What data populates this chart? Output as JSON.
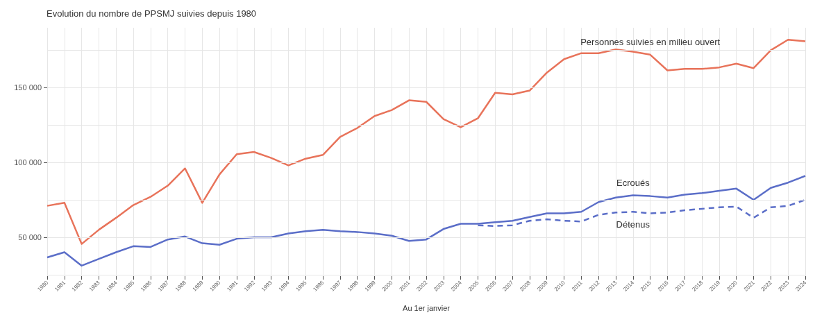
{
  "chart_data": {
    "type": "line",
    "title": "Evolution du nombre de PPSMJ suivies depuis 1980",
    "xlabel": "Au 1er janvier",
    "categories": [
      "1980",
      "1981",
      "1982",
      "1983",
      "1984",
      "1985",
      "1986",
      "1987",
      "1988",
      "1989",
      "1990",
      "1991",
      "1992",
      "1993",
      "1994",
      "1995",
      "1996",
      "1997",
      "1998",
      "1999",
      "2000",
      "2001",
      "2002",
      "2003",
      "2004",
      "2005",
      "2006",
      "2007",
      "2008",
      "2009",
      "2010",
      "2011",
      "2012",
      "2013",
      "2014",
      "2015",
      "2016",
      "2017",
      "2018",
      "2019",
      "2020",
      "2021",
      "2022",
      "2023",
      "2024"
    ],
    "series": [
      {
        "name": "Personnes suivies en milieu ouvert",
        "color": "#e8735a",
        "line_style": "solid",
        "values": [
          71000,
          73000,
          45500,
          55000,
          63000,
          71500,
          77000,
          84500,
          96000,
          73000,
          92000,
          105500,
          107000,
          103000,
          98000,
          102500,
          105000,
          117000,
          123000,
          131000,
          135000,
          141500,
          140500,
          129000,
          123500,
          129500,
          146500,
          145500,
          148000,
          160000,
          169000,
          173000,
          173000,
          175500,
          174000,
          172000,
          161500,
          162500,
          162500,
          163500,
          166000,
          163000,
          175000,
          182000,
          181000
        ]
      },
      {
        "name": "Ecroués",
        "color": "#5b6ec8",
        "line_style": "solid",
        "values": [
          36500,
          40000,
          31000,
          35500,
          40000,
          44000,
          43500,
          48500,
          50500,
          46000,
          45000,
          49000,
          50000,
          50000,
          52500,
          54000,
          55000,
          54000,
          53500,
          52500,
          51000,
          47500,
          48500,
          55500,
          59000,
          59000,
          60000,
          61000,
          63500,
          66000,
          66000,
          67000,
          73500,
          76500,
          78000,
          77500,
          76500,
          78500,
          79500,
          81000,
          82500,
          75000,
          83000,
          86500,
          91000
        ]
      },
      {
        "name": "Détenus",
        "color": "#5b6ec8",
        "line_style": "dashed",
        "values": [
          null,
          null,
          null,
          null,
          null,
          null,
          null,
          null,
          null,
          null,
          null,
          null,
          null,
          null,
          null,
          null,
          null,
          null,
          null,
          null,
          null,
          null,
          null,
          null,
          null,
          58000,
          57500,
          58000,
          61000,
          62000,
          61000,
          60500,
          65000,
          66500,
          67000,
          66000,
          66500,
          68000,
          69000,
          70000,
          70500,
          63000,
          70000,
          71000,
          75000
        ]
      }
    ],
    "ylim": [
      24000,
      190000
    ],
    "yticks": [
      {
        "value": 25000,
        "label": null
      },
      {
        "value": 50000,
        "label": "50 000"
      },
      {
        "value": 75000,
        "label": null
      },
      {
        "value": 100000,
        "label": "100 000"
      },
      {
        "value": 125000,
        "label": null
      },
      {
        "value": 150000,
        "label": "150 000"
      },
      {
        "value": 175000,
        "label": null
      }
    ],
    "grid": true,
    "legend": false,
    "marker": "none"
  }
}
